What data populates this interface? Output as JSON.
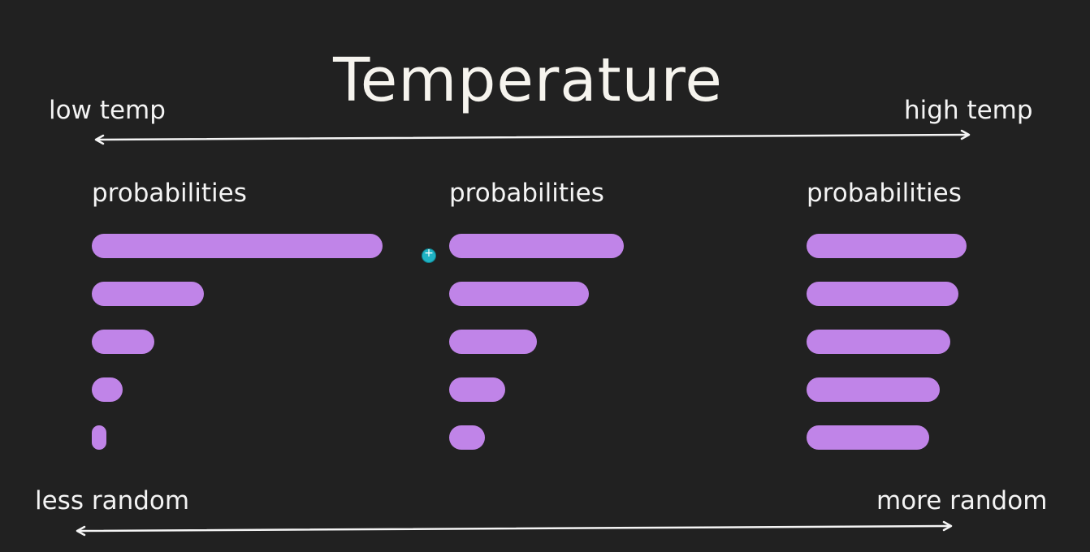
{
  "title": "Temperature",
  "top_axis": {
    "left_label": "low temp",
    "right_label": "high temp"
  },
  "bottom_axis": {
    "left_label": "less random",
    "right_label": "more random"
  },
  "colors": {
    "background": "#212121",
    "bar": "#c084e8",
    "text": "#f4f4f4",
    "cursor": "#1fb3c4"
  },
  "columns": [
    {
      "label": "probabilities",
      "bars": [
        0.7,
        0.27,
        0.15,
        0.075,
        0.035
      ]
    },
    {
      "label": "probabilities",
      "bars": [
        0.42,
        0.335,
        0.21,
        0.135,
        0.085
      ]
    },
    {
      "label": "probabilities",
      "bars": [
        0.385,
        0.365,
        0.345,
        0.32,
        0.295
      ]
    }
  ]
}
